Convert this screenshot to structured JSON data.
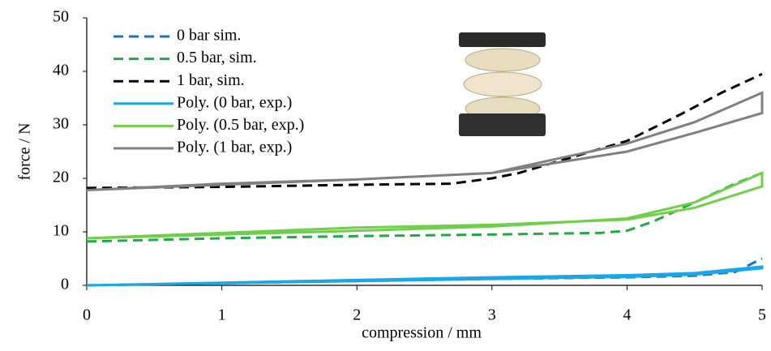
{
  "chart_data": {
    "type": "line",
    "xlabel": "compression / mm",
    "ylabel": "force / N",
    "xlim": [
      0,
      5
    ],
    "ylim": [
      0,
      50
    ],
    "xticks": [
      0,
      1,
      2,
      3,
      4,
      5
    ],
    "yticks": [
      0,
      10,
      20,
      30,
      40,
      50
    ],
    "grid": false,
    "legend": "upper left",
    "series": [
      {
        "name": "0 bar sim.",
        "color": "#1f6fbf",
        "dashed": true,
        "x": [
          0,
          1,
          2,
          3,
          4,
          4.5,
          4.8,
          5
        ],
        "values": [
          0,
          0.4,
          0.8,
          1.2,
          1.5,
          1.8,
          2.5,
          5
        ]
      },
      {
        "name": "0.5 bar, sim.",
        "color": "#22a846",
        "dashed": true,
        "x": [
          0,
          1,
          2,
          3,
          3.8,
          4,
          4.2,
          4.5,
          4.8,
          5
        ],
        "values": [
          8.2,
          8.8,
          9.2,
          9.5,
          9.8,
          10.2,
          12,
          15.5,
          19,
          21
        ]
      },
      {
        "name": "1 bar, sim.",
        "color": "#000000",
        "dashed": true,
        "x": [
          0,
          1,
          2,
          2.7,
          3,
          3.2,
          3.6,
          4,
          4.4,
          4.7,
          5
        ],
        "values": [
          18.2,
          18.4,
          18.8,
          19,
          20,
          21,
          24,
          27,
          32,
          36,
          39.5
        ]
      },
      {
        "name": "Poly. (0 bar, exp.)",
        "color": "#1aa7e8",
        "dashed": false,
        "x": [
          0,
          1,
          2,
          3,
          4,
          4.5,
          5,
          5,
          4.5,
          4,
          3,
          2,
          1,
          0
        ],
        "values": [
          0,
          0.5,
          1,
          1.5,
          1.9,
          2.3,
          3.5,
          3.2,
          2,
          1.6,
          1.2,
          0.8,
          0.4,
          0
        ]
      },
      {
        "name": "Poly. (0.5 bar, exp.)",
        "color": "#6fcf4a",
        "dashed": false,
        "x": [
          0,
          1,
          2,
          3,
          4,
          4.5,
          5,
          5,
          4.5,
          4,
          3,
          2,
          1,
          0
        ],
        "values": [
          8.8,
          9.8,
          10.8,
          11.3,
          12.3,
          14.5,
          18.5,
          21,
          15.5,
          12.5,
          11,
          10.2,
          9.5,
          8.8
        ]
      },
      {
        "name": "Poly. (1 bar, exp.)",
        "color": "#808080",
        "dashed": false,
        "x": [
          0,
          1,
          2,
          3,
          4,
          4.5,
          5,
          5,
          4.5,
          4,
          3,
          2,
          1,
          0
        ],
        "values": [
          17.8,
          19,
          19.8,
          21,
          25,
          28.5,
          32.2,
          36,
          30.5,
          26.5,
          21,
          19.8,
          18.8,
          17.8
        ]
      }
    ]
  }
}
